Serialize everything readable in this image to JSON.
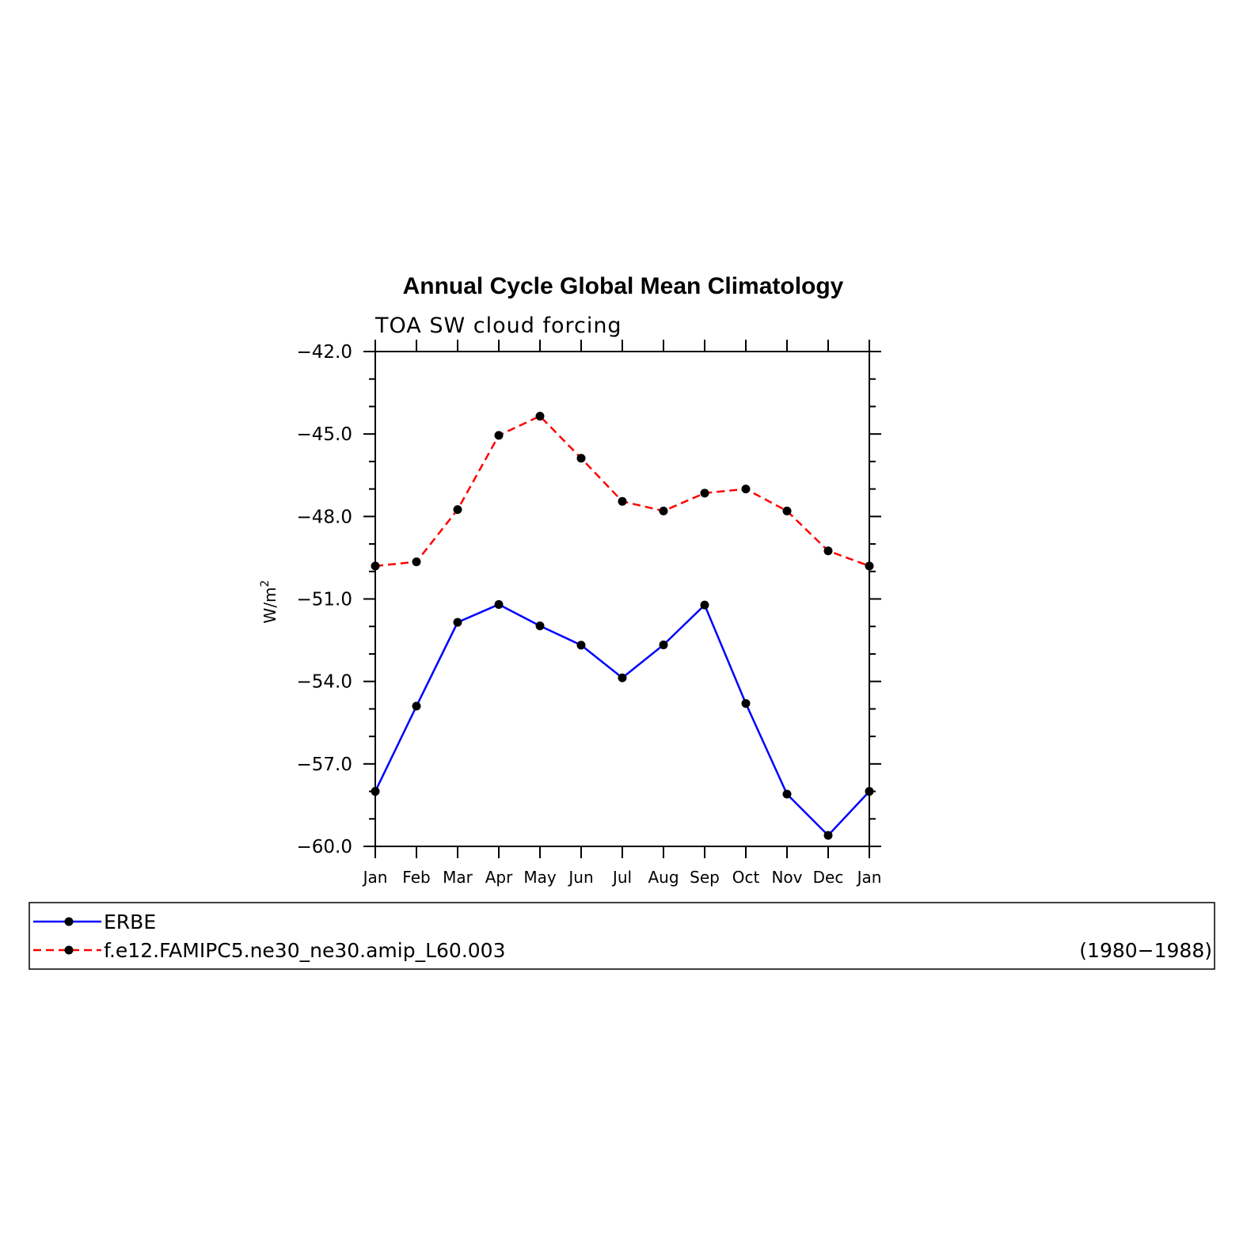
{
  "chart_data": {
    "type": "line",
    "title": "Annual Cycle Global Mean Climatology",
    "subtitle": "TOA SW cloud forcing",
    "ylabel": "W/m",
    "ylabel_sup": "2",
    "ylim": [
      -60.0,
      -42.0
    ],
    "yticks": [
      "-60.0",
      "-57.0",
      "-54.0",
      "-51.0",
      "-48.0",
      "-45.0",
      "-42.0"
    ],
    "categories": [
      "Jan",
      "Feb",
      "Mar",
      "Apr",
      "May",
      "Jun",
      "Jul",
      "Aug",
      "Sep",
      "Oct",
      "Nov",
      "Dec",
      "Jan"
    ],
    "grid": false,
    "series": [
      {
        "name": "ERBE",
        "color": "#0000ff",
        "dash": "solid",
        "values": [
          -58.0,
          -54.9,
          -51.85,
          -51.2,
          -51.98,
          -52.68,
          -53.87,
          -52.67,
          -51.22,
          -54.8,
          -58.1,
          -59.6,
          -58.0
        ]
      },
      {
        "name": "f.e12.FAMIPC5.ne30_ne30.amip_L60.003",
        "color": "#ff0000",
        "dash": "dashed",
        "values": [
          -49.8,
          -49.65,
          -47.75,
          -45.05,
          -44.35,
          -45.88,
          -47.45,
          -47.8,
          -47.15,
          -47.0,
          -47.8,
          -49.25,
          -49.8
        ]
      }
    ],
    "legend": {
      "placement": "bottom",
      "period": "(1980−1988)"
    },
    "marker_color": "#000000"
  }
}
